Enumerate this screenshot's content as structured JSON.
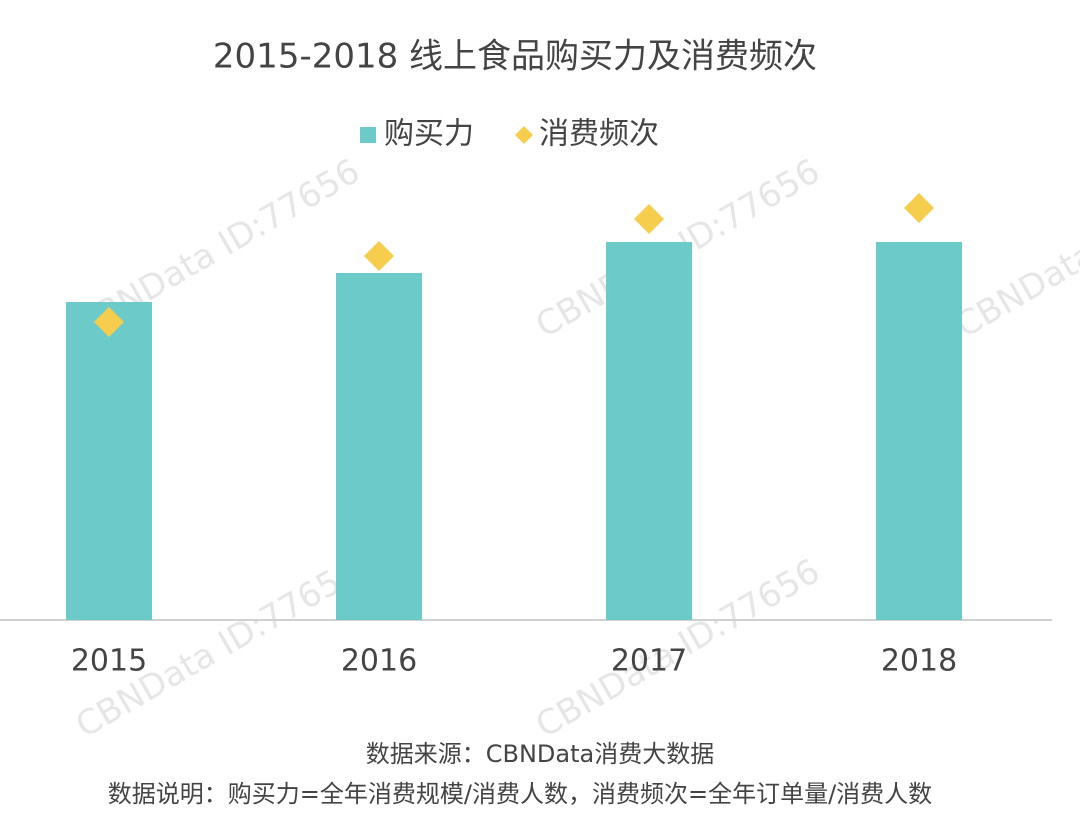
{
  "chart_data": {
    "type": "bar",
    "title": "2015-2018 线上食品购买力及消费频次",
    "categories": [
      "2015",
      "2016",
      "2017",
      "2018"
    ],
    "series": [
      {
        "name": "购买力",
        "type": "bar",
        "color": "#6ccac8",
        "values": [
          318,
          347,
          378,
          378
        ]
      },
      {
        "name": "消费频次",
        "type": "scatter",
        "marker": "diamond",
        "color": "#f6cd4c",
        "values": [
          298,
          364,
          401,
          412
        ]
      }
    ],
    "ylim": [
      0,
      440
    ],
    "source": "数据来源：CBNData消费大数据",
    "note": "数据说明：购买力=全年消费规模/消费人数，消费频次=全年订单量/消费人数",
    "watermark": "CBNData ID:77656"
  }
}
